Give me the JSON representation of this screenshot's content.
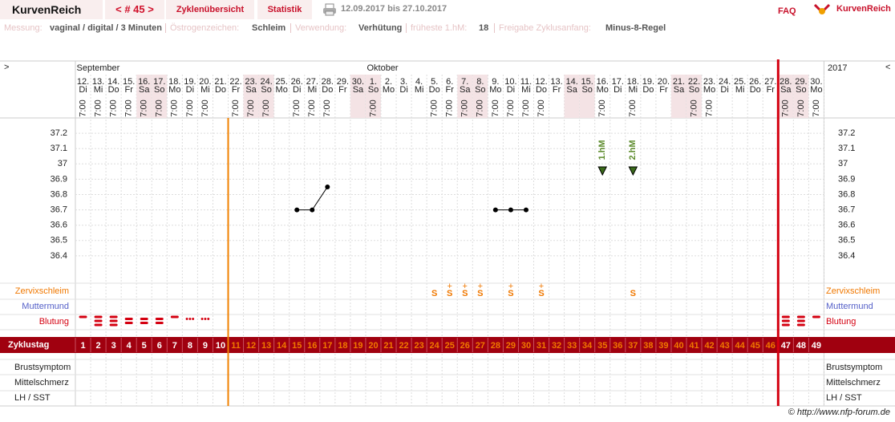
{
  "header": {
    "brand": "KurvenReich",
    "cycle_nav": "< # 45 >",
    "tabs": [
      "Zyklenübersicht",
      "Statistik"
    ],
    "period": "12.09.2017 bis 27.10.2017",
    "faq": "FAQ",
    "logo": "KurvenReich"
  },
  "settings": [
    {
      "label": "Messung:",
      "value": "vaginal / digital / 3 Minuten"
    },
    {
      "label": "Östrogenzeichen:",
      "value": "Schleim"
    },
    {
      "label": "Verwendung:",
      "value": "Verhütung"
    },
    {
      "label": "früheste 1.hM:",
      "value": "18"
    },
    {
      "label": "Freigabe Zyklusanfang:",
      "value": "Minus-8-Regel"
    }
  ],
  "chart_data": {
    "type": "line",
    "nav_left": ">",
    "nav_right": "<",
    "year": "2017",
    "month_labels": [
      "September",
      null,
      null,
      null,
      null,
      null,
      null,
      null,
      null,
      null,
      null,
      null,
      null,
      null,
      null,
      null,
      null,
      null,
      null,
      "Oktober",
      null,
      null,
      null,
      null,
      null,
      null,
      null,
      null,
      null,
      null,
      null,
      null,
      null,
      null,
      null,
      null,
      null,
      null,
      null,
      null,
      null,
      null,
      null,
      null,
      null,
      null,
      null,
      null,
      null
    ],
    "x": [
      "12.",
      "13.",
      "14.",
      "15.",
      "16.",
      "17.",
      "18.",
      "19.",
      "20.",
      "21.",
      "22.",
      "23.",
      "24.",
      "25.",
      "26.",
      "27.",
      "28.",
      "29.",
      "30.",
      "1.",
      "2.",
      "3.",
      "4.",
      "5.",
      "6.",
      "7.",
      "8.",
      "9.",
      "10.",
      "11.",
      "12.",
      "13.",
      "14.",
      "15.",
      "16.",
      "17.",
      "18.",
      "19.",
      "20.",
      "21.",
      "22.",
      "23.",
      "24.",
      "25.",
      "26.",
      "27.",
      "28.",
      "29.",
      "30."
    ],
    "weekdays": [
      "Di",
      "Mi",
      "Do",
      "Fr",
      "Sa",
      "So",
      "Mo",
      "Di",
      "Mi",
      "Do",
      "Fr",
      "Sa",
      "So",
      "Mo",
      "Di",
      "Mi",
      "Do",
      "Fr",
      "Sa",
      "So",
      "Mo",
      "Di",
      "Mi",
      "Do",
      "Fr",
      "Sa",
      "So",
      "Mo",
      "Di",
      "Mi",
      "Do",
      "Fr",
      "Sa",
      "So",
      "Mo",
      "Di",
      "Mi",
      "Do",
      "Fr",
      "Sa",
      "So",
      "Mo",
      "Di",
      "Mi",
      "Do",
      "Fr",
      "Sa",
      "So",
      "Mo"
    ],
    "weekend_days": [
      "Sa",
      "So"
    ],
    "weekend_color": "#f4e3e5",
    "times": [
      "7:00",
      "7:00",
      "7:00",
      "7:00",
      "7:00",
      "7:00",
      "7:00",
      "7:00",
      "7:00",
      null,
      "7:00",
      "7:00",
      "7:00",
      null,
      "7:00",
      "7:00",
      "7:00",
      null,
      null,
      "7:00",
      null,
      null,
      null,
      "7:00",
      "7:00",
      "7:00",
      "7:00",
      "7:00",
      "7:00",
      "7:00",
      "7:00",
      null,
      null,
      null,
      "7:00",
      null,
      "7:00",
      null,
      null,
      null,
      "7:00",
      "7:00",
      null,
      null,
      null,
      null,
      "7:00",
      "7:00",
      "7:00"
    ],
    "values": [
      null,
      null,
      null,
      null,
      null,
      null,
      null,
      null,
      null,
      null,
      null,
      null,
      null,
      null,
      36.7,
      36.7,
      36.85,
      null,
      null,
      null,
      null,
      null,
      null,
      null,
      null,
      null,
      null,
      36.7,
      36.7,
      36.7,
      null,
      null,
      null,
      null,
      null,
      null,
      null,
      null,
      null,
      null,
      null,
      null,
      null,
      null,
      null,
      null,
      null,
      null,
      null
    ],
    "color": "#000000",
    "ylim": [
      36.3,
      37.3
    ],
    "yticks": [
      36.4,
      36.5,
      36.6,
      36.7,
      36.8,
      36.9,
      37,
      37.1,
      37.2
    ],
    "grid": true,
    "hm_labels": [
      null,
      null,
      null,
      null,
      null,
      null,
      null,
      null,
      null,
      null,
      null,
      null,
      null,
      null,
      null,
      null,
      null,
      null,
      null,
      null,
      null,
      null,
      null,
      null,
      null,
      null,
      null,
      null,
      null,
      null,
      null,
      null,
      null,
      null,
      "1.hM",
      null,
      "2.hM",
      null,
      null,
      null,
      null,
      null,
      null,
      null,
      null,
      null,
      null,
      null,
      null
    ],
    "rows": {
      "cervix": {
        "label": "Zervixschleim",
        "color": "#f07800",
        "values": [
          null,
          null,
          null,
          null,
          null,
          null,
          null,
          null,
          null,
          null,
          null,
          null,
          null,
          null,
          null,
          null,
          null,
          null,
          null,
          null,
          null,
          null,
          null,
          {
            "mark": "S"
          },
          {
            "plus": "+",
            "mark": "S"
          },
          {
            "plus": "+",
            "mark": "S"
          },
          {
            "plus": "+",
            "mark": "S"
          },
          null,
          {
            "plus": "+",
            "mark": "S"
          },
          null,
          {
            "plus": "+",
            "mark": "S"
          },
          null,
          null,
          null,
          null,
          null,
          {
            "mark": "S"
          },
          null,
          null,
          null,
          null,
          null,
          null,
          null,
          null,
          null,
          null,
          null,
          null
        ]
      },
      "cervix_position": {
        "label": "Muttermund",
        "color": "#5560c8"
      },
      "bleeding": {
        "label": "Blutung",
        "color": "#d40010",
        "values": [
          1,
          3,
          3,
          2,
          2,
          2,
          1,
          "•••",
          "•••",
          null,
          null,
          null,
          null,
          null,
          null,
          null,
          null,
          null,
          null,
          null,
          null,
          null,
          null,
          null,
          null,
          null,
          null,
          null,
          null,
          null,
          null,
          null,
          null,
          null,
          null,
          null,
          null,
          null,
          null,
          null,
          null,
          null,
          null,
          null,
          null,
          null,
          3,
          3,
          1
        ]
      },
      "cycle_day": {
        "label": "Zyklustag",
        "background": "#a0000f",
        "values": [
          1,
          2,
          3,
          4,
          5,
          6,
          7,
          8,
          9,
          10,
          11,
          12,
          13,
          14,
          15,
          16,
          17,
          18,
          19,
          20,
          21,
          22,
          23,
          24,
          25,
          26,
          27,
          28,
          29,
          30,
          31,
          32,
          33,
          34,
          35,
          36,
          37,
          38,
          39,
          40,
          41,
          42,
          43,
          44,
          45,
          46,
          47,
          48,
          49
        ],
        "colors": [
          "#fff",
          "#fff",
          "#fff",
          "#fff",
          "#fff",
          "#fff",
          "#fff",
          "#fff",
          "#fff",
          "#fff",
          "#f07800",
          "#f07800",
          "#f07800",
          "#f07800",
          "#f07800",
          "#f07800",
          "#f07800",
          "#f07800",
          "#f07800",
          "#f07800",
          "#f07800",
          "#f07800",
          "#f07800",
          "#f07800",
          "#f07800",
          "#f07800",
          "#f07800",
          "#f07800",
          "#f07800",
          "#f07800",
          "#f07800",
          "#f07800",
          "#f07800",
          "#f07800",
          "#f07800",
          "#f07800",
          "#f07800",
          "#f07800",
          "#f07800",
          "#f07800",
          "#f07800",
          "#f07800",
          "#f07800",
          "#f07800",
          "#f07800",
          "#f07800",
          "#fff",
          "#fff",
          "#fff"
        ]
      },
      "breast": {
        "label": "Brustsymptom"
      },
      "mittelschmerz": {
        "label": "Mittelschmerz"
      },
      "lh": {
        "label": "LH / SST"
      }
    }
  },
  "footer": "© http://www.nfp-forum.de"
}
